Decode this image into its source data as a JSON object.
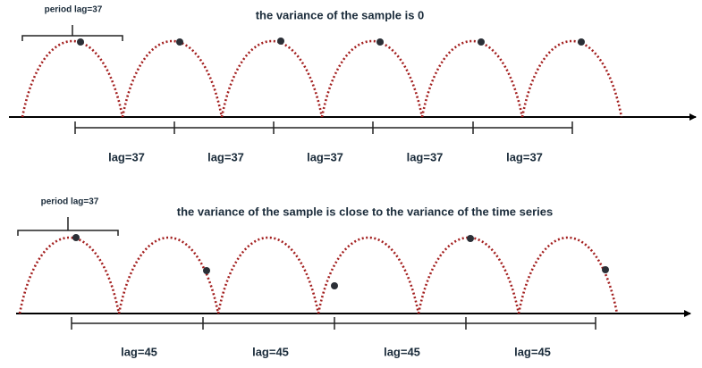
{
  "panels": [
    {
      "title": "the variance of the sample is 0",
      "period_label": "period lag=37",
      "lag_labels": [
        "lag=37",
        "lag=37",
        "lag=37",
        "lag=37",
        "lag=37"
      ]
    },
    {
      "title": "the variance of the sample is close to the variance of the time series",
      "period_label": "period lag=37",
      "lag_labels": [
        "lag=45",
        "lag=45",
        "lag=45",
        "lag=45"
      ]
    }
  ]
}
